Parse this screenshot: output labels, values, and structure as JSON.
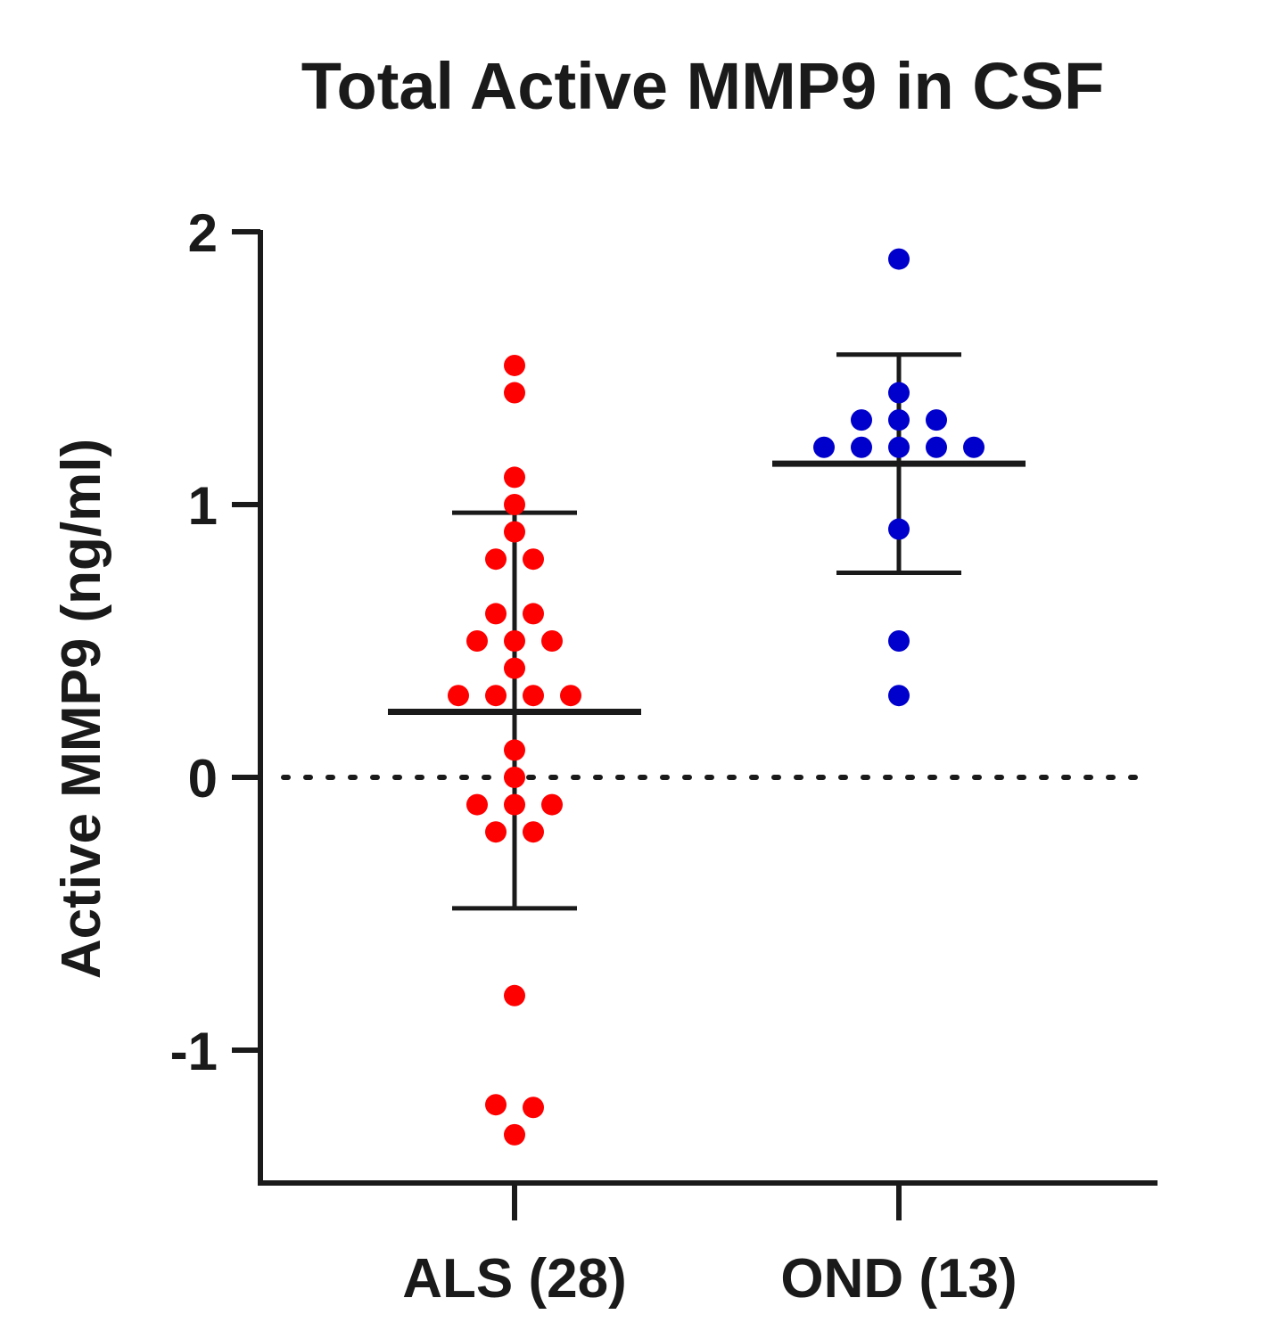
{
  "chart_data": {
    "type": "scatter",
    "title": "Total Active MMP9 in CSF",
    "xlabel": "",
    "ylabel": "Active MMP9 (ng/ml)",
    "ylim": [
      -1.5,
      2.0
    ],
    "yticks": [
      2,
      1,
      0,
      -1
    ],
    "ytick_labels": [
      "2",
      "1",
      "0",
      "-1"
    ],
    "reference_line": {
      "y": 0,
      "style": "dotted"
    },
    "categories": [
      "ALS (28)",
      "OND (13)"
    ],
    "series": [
      {
        "name": "ALS (28)",
        "color": "#ff0000",
        "values": [
          1.51,
          1.41,
          1.1,
          1.0,
          0.9,
          0.8,
          0.8,
          0.6,
          0.6,
          0.5,
          0.5,
          0.5,
          0.4,
          0.3,
          0.3,
          0.3,
          0.3,
          0.1,
          0.0,
          -0.1,
          -0.1,
          -0.1,
          -0.2,
          -0.2,
          -0.8,
          -1.2,
          -1.21,
          -1.31
        ],
        "mean": 0.24,
        "sd_upper": 0.97,
        "sd_lower": -0.48
      },
      {
        "name": "OND (13)",
        "color": "#0000cc",
        "values": [
          1.9,
          1.41,
          1.31,
          1.31,
          1.31,
          1.21,
          1.21,
          1.21,
          1.21,
          1.21,
          0.91,
          0.5,
          0.3
        ],
        "mean": 1.15,
        "sd_upper": 1.55,
        "sd_lower": 0.75
      }
    ]
  }
}
